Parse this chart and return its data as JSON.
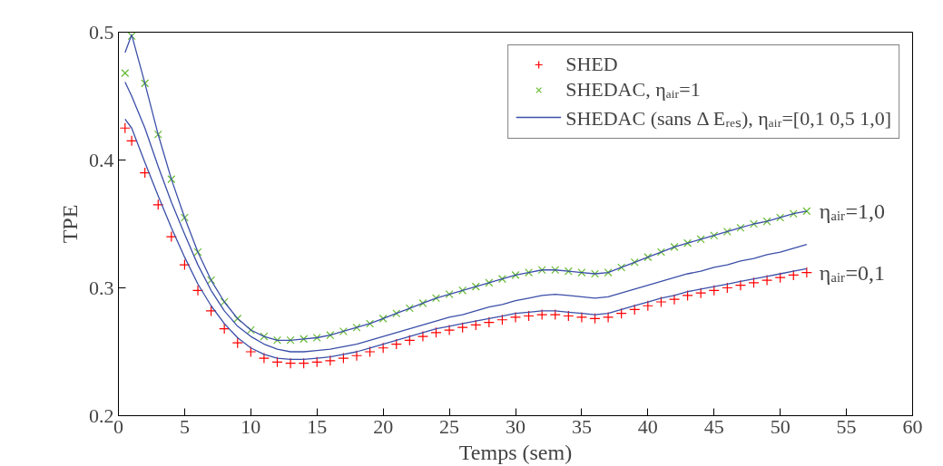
{
  "chart_data": {
    "type": "scatter",
    "xlabel": "Temps (sem)",
    "ylabel": "TPE",
    "x": [
      0.5,
      1,
      2,
      3,
      4,
      5,
      6,
      7,
      8,
      9,
      10,
      11,
      12,
      13,
      14,
      15,
      16,
      17,
      18,
      19,
      20,
      21,
      22,
      23,
      24,
      25,
      26,
      27,
      28,
      29,
      30,
      31,
      32,
      33,
      34,
      35,
      36,
      37,
      38,
      39,
      40,
      41,
      42,
      43,
      44,
      45,
      46,
      47,
      48,
      49,
      50,
      51,
      52
    ],
    "series": [
      {
        "name": "SHED",
        "marker": "cross",
        "color": "#ff0000",
        "values": [
          0.425,
          0.415,
          0.39,
          0.365,
          0.34,
          0.318,
          0.298,
          0.282,
          0.268,
          0.257,
          0.25,
          0.245,
          0.242,
          0.241,
          0.241,
          0.242,
          0.243,
          0.245,
          0.247,
          0.25,
          0.253,
          0.256,
          0.259,
          0.262,
          0.265,
          0.267,
          0.269,
          0.271,
          0.273,
          0.275,
          0.277,
          0.278,
          0.279,
          0.279,
          0.278,
          0.277,
          0.276,
          0.277,
          0.28,
          0.283,
          0.286,
          0.289,
          0.291,
          0.294,
          0.296,
          0.298,
          0.3,
          0.302,
          0.304,
          0.306,
          0.308,
          0.31,
          0.312
        ]
      },
      {
        "name": "SHEDAC, ηₐᵢᵣ=1",
        "marker": "x",
        "color": "#66bb33",
        "values": [
          0.468,
          0.497,
          0.46,
          0.42,
          0.385,
          0.355,
          0.328,
          0.306,
          0.289,
          0.276,
          0.267,
          0.262,
          0.259,
          0.259,
          0.26,
          0.261,
          0.263,
          0.266,
          0.269,
          0.272,
          0.276,
          0.28,
          0.284,
          0.288,
          0.292,
          0.295,
          0.298,
          0.301,
          0.304,
          0.307,
          0.31,
          0.312,
          0.314,
          0.314,
          0.313,
          0.312,
          0.311,
          0.312,
          0.316,
          0.32,
          0.324,
          0.328,
          0.332,
          0.335,
          0.338,
          0.341,
          0.344,
          0.347,
          0.35,
          0.352,
          0.355,
          0.358,
          0.36
        ]
      },
      {
        "name": "SHEDAC (sans Δ Eᵣₑₛ), ηₐᵢᵣ=[0,1 0,5 1,0]",
        "type": "line",
        "marker": "none",
        "color": "#3b4fa8",
        "values": [
          0.432,
          0.425,
          0.398,
          0.372,
          0.347,
          0.324,
          0.303,
          0.286,
          0.272,
          0.261,
          0.253,
          0.248,
          0.245,
          0.244,
          0.244,
          0.245,
          0.246,
          0.248,
          0.25,
          0.253,
          0.256,
          0.259,
          0.262,
          0.265,
          0.268,
          0.27,
          0.272,
          0.274,
          0.276,
          0.278,
          0.28,
          0.281,
          0.282,
          0.282,
          0.281,
          0.28,
          0.279,
          0.28,
          0.283,
          0.286,
          0.289,
          0.292,
          0.294,
          0.297,
          0.299,
          0.301,
          0.303,
          0.305,
          0.307,
          0.309,
          0.311,
          0.313,
          0.315
        ]
      },
      {
        "type": "line",
        "marker": "none",
        "color": "#3b4fa8",
        "values": [
          0.461,
          0.45,
          0.425,
          0.395,
          0.367,
          0.342,
          0.318,
          0.298,
          0.282,
          0.27,
          0.262,
          0.256,
          0.252,
          0.25,
          0.25,
          0.251,
          0.252,
          0.254,
          0.256,
          0.259,
          0.262,
          0.265,
          0.268,
          0.271,
          0.274,
          0.277,
          0.279,
          0.282,
          0.285,
          0.287,
          0.29,
          0.292,
          0.294,
          0.295,
          0.294,
          0.293,
          0.292,
          0.293,
          0.296,
          0.299,
          0.302,
          0.305,
          0.308,
          0.311,
          0.313,
          0.316,
          0.318,
          0.321,
          0.323,
          0.326,
          0.328,
          0.331,
          0.334
        ]
      },
      {
        "type": "line",
        "marker": "none",
        "color": "#3b4fa8",
        "values": [
          0.484,
          0.498,
          0.46,
          0.42,
          0.385,
          0.355,
          0.328,
          0.306,
          0.289,
          0.276,
          0.267,
          0.262,
          0.259,
          0.259,
          0.26,
          0.261,
          0.263,
          0.266,
          0.269,
          0.272,
          0.276,
          0.28,
          0.284,
          0.288,
          0.292,
          0.295,
          0.298,
          0.301,
          0.304,
          0.307,
          0.31,
          0.312,
          0.314,
          0.314,
          0.313,
          0.312,
          0.311,
          0.312,
          0.316,
          0.32,
          0.324,
          0.328,
          0.332,
          0.335,
          0.338,
          0.341,
          0.344,
          0.347,
          0.35,
          0.352,
          0.355,
          0.358,
          0.36
        ]
      }
    ],
    "xlim": [
      0,
      60
    ],
    "xticks": [
      0,
      5,
      10,
      15,
      20,
      25,
      30,
      35,
      40,
      45,
      50,
      55,
      60
    ],
    "ylim": [
      0.2,
      0.5
    ],
    "yticks": [
      0.2,
      0.3,
      0.4,
      0.5
    ],
    "grid": false,
    "legend": "top right",
    "line_style": "solid",
    "annotations": [
      {
        "text": "ηₐᵢᵣ=1,0",
        "x": 52,
        "y": 0.36
      },
      {
        "text": "ηₐᵢᵣ=0,1",
        "x": 52,
        "y": 0.312
      }
    ]
  }
}
